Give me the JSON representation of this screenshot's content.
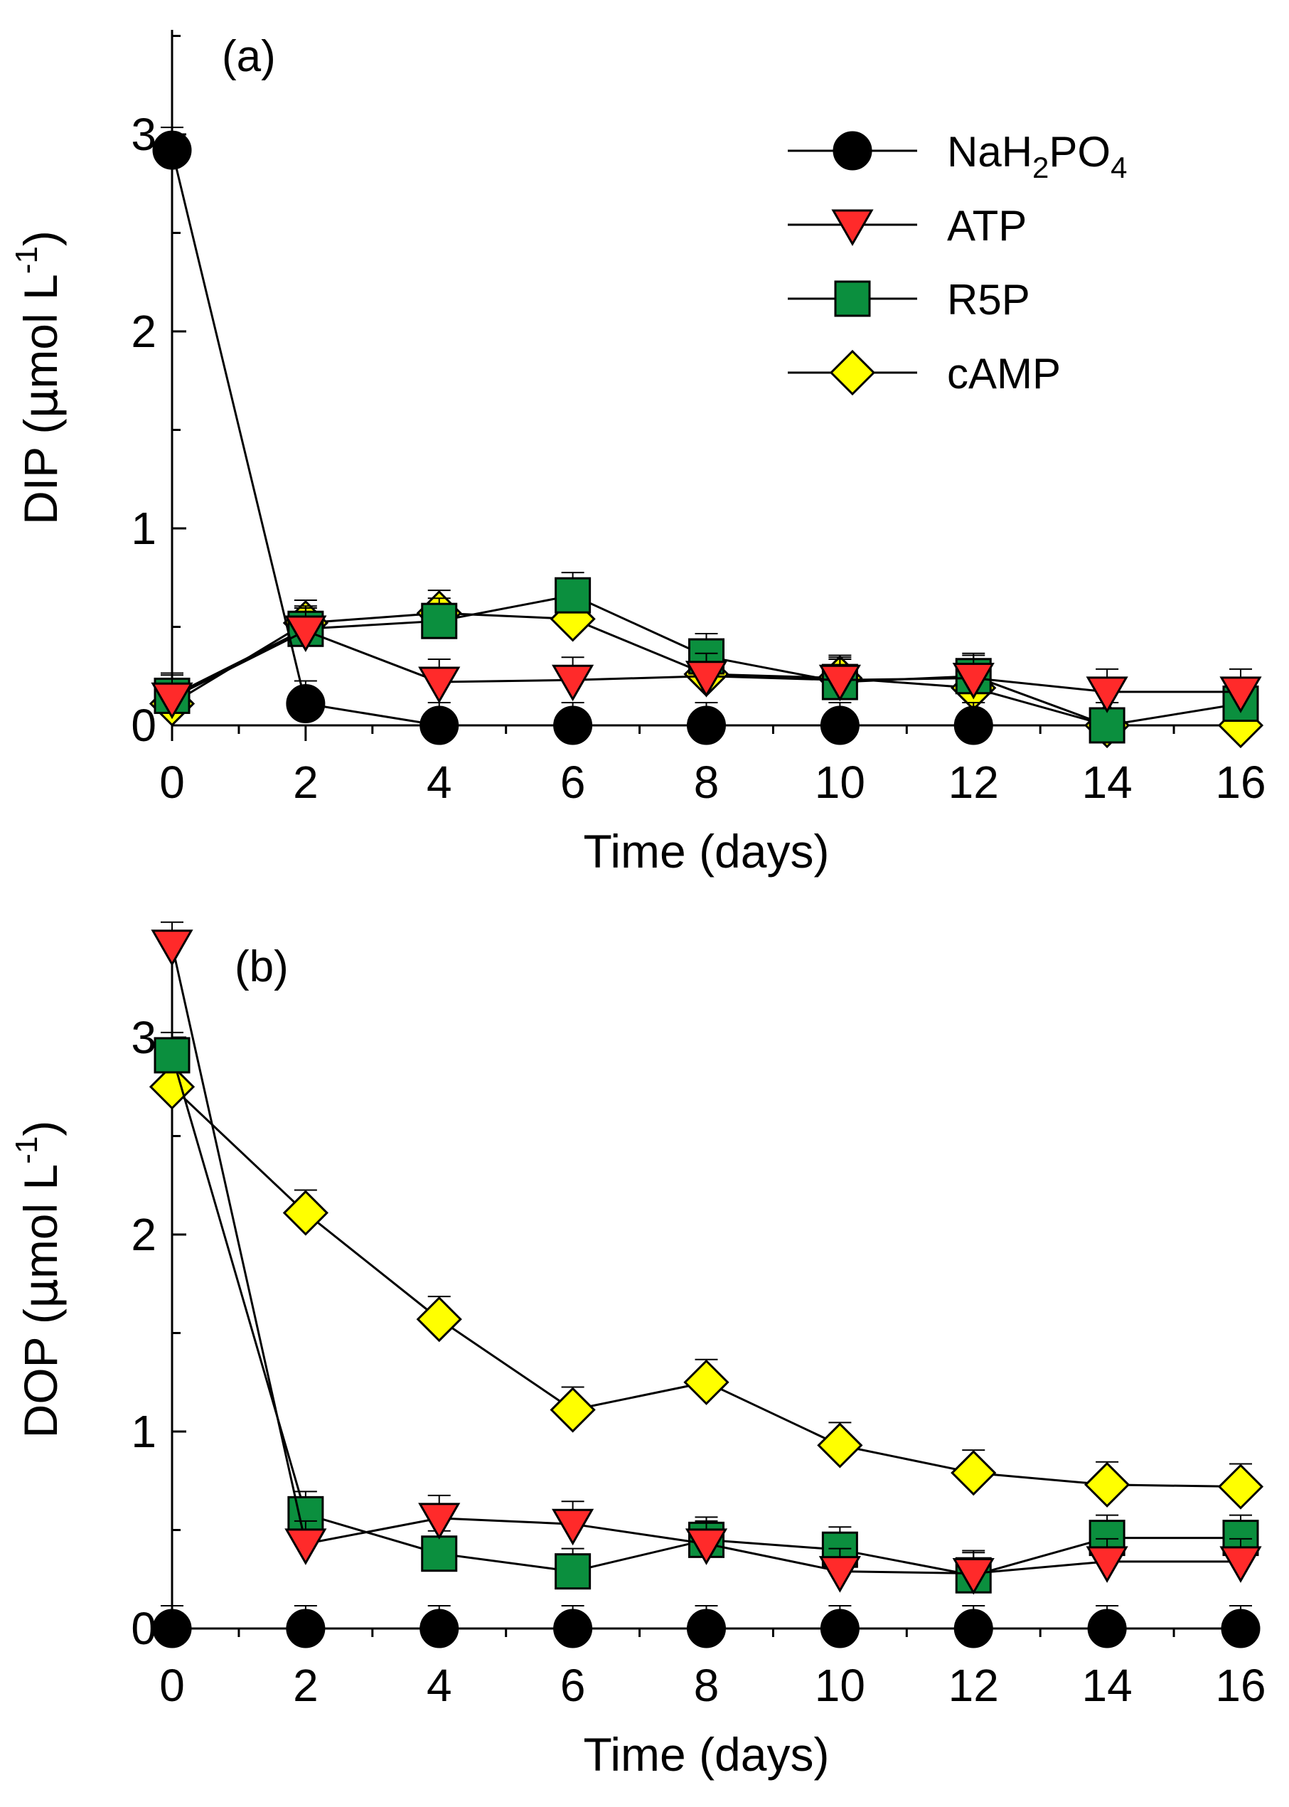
{
  "chart_data": [
    {
      "type": "line",
      "panel_label": "(a)",
      "xlabel": "Time (days)",
      "ylabel": "DIP (μmol L-1)",
      "ylabel_parts": [
        "DIP (",
        "μ",
        "mol L",
        "-1",
        ")"
      ],
      "xlim": [
        0,
        16
      ],
      "ylim": [
        0,
        3.5
      ],
      "x_ticks": [
        "0",
        "2",
        "4",
        "6",
        "8",
        "10",
        "12",
        "14",
        "16"
      ],
      "y_ticks": [
        "0",
        "1",
        "2",
        "3"
      ],
      "grid": false,
      "legend": "top-right",
      "x": [
        0,
        2,
        4,
        6,
        8,
        10,
        12,
        14,
        16
      ],
      "series": [
        {
          "name": "NaH2PO4",
          "marker": "circle",
          "color": "#000000",
          "values": [
            2.92,
            0.11,
            0.0,
            0.0,
            0.0,
            0.0,
            0.0,
            null,
            null
          ]
        },
        {
          "name": "ATP",
          "marker": "triangle-down",
          "color": "#ff2a2a",
          "values": [
            0.14,
            0.48,
            0.22,
            0.23,
            0.25,
            0.23,
            0.24,
            0.17,
            0.17
          ]
        },
        {
          "name": "R5P",
          "marker": "square",
          "color": "#0b8f3e",
          "values": [
            0.15,
            0.49,
            0.53,
            0.66,
            0.35,
            0.22,
            0.25,
            0.0,
            0.11
          ]
        },
        {
          "name": "cAMP",
          "marker": "diamond",
          "color": "#ffff00",
          "values": [
            0.11,
            0.52,
            0.57,
            0.54,
            0.26,
            0.24,
            0.19,
            0.0,
            0.0
          ]
        }
      ]
    },
    {
      "type": "line",
      "panel_label": "(b)",
      "xlabel": "Time (days)",
      "ylabel": "DOP (μmol L-1)",
      "ylabel_parts": [
        "DOP (",
        "μ",
        "mol L",
        "-1",
        ")"
      ],
      "xlim": [
        0,
        16
      ],
      "ylim": [
        0,
        3.5
      ],
      "x_ticks": [
        "0",
        "2",
        "4",
        "6",
        "8",
        "10",
        "12",
        "14",
        "16"
      ],
      "y_ticks": [
        "0",
        "1",
        "2",
        "3"
      ],
      "grid": false,
      "x": [
        0,
        2,
        4,
        6,
        8,
        10,
        12,
        14,
        16
      ],
      "series": [
        {
          "name": "NaH2PO4",
          "marker": "circle",
          "color": "#000000",
          "values": [
            0.0,
            0.0,
            0.0,
            0.0,
            0.0,
            0.0,
            0.0,
            0.0,
            0.0
          ]
        },
        {
          "name": "ATP",
          "marker": "triangle-down",
          "color": "#ff2a2a",
          "values": [
            3.47,
            0.43,
            0.56,
            0.53,
            0.43,
            0.29,
            0.28,
            0.34,
            0.34
          ]
        },
        {
          "name": "R5P",
          "marker": "square",
          "color": "#0b8f3e",
          "values": [
            2.91,
            0.58,
            0.38,
            0.29,
            0.45,
            0.4,
            0.27,
            0.46,
            0.46
          ]
        },
        {
          "name": "cAMP",
          "marker": "diamond",
          "color": "#ffff00",
          "values": [
            2.75,
            2.11,
            1.57,
            1.11,
            1.25,
            0.93,
            0.79,
            0.73,
            0.72
          ]
        }
      ]
    }
  ],
  "legend": {
    "entries": [
      {
        "parts": [
          "NaH",
          "2",
          "PO",
          "4"
        ],
        "marker": "circle",
        "color": "#000000"
      },
      {
        "parts": [
          "ATP"
        ],
        "marker": "triangle-down",
        "color": "#ff2a2a"
      },
      {
        "parts": [
          "R5P"
        ],
        "marker": "square",
        "color": "#0b8f3e"
      },
      {
        "parts": [
          "cAMP"
        ],
        "marker": "diamond",
        "color": "#ffff00"
      }
    ]
  }
}
